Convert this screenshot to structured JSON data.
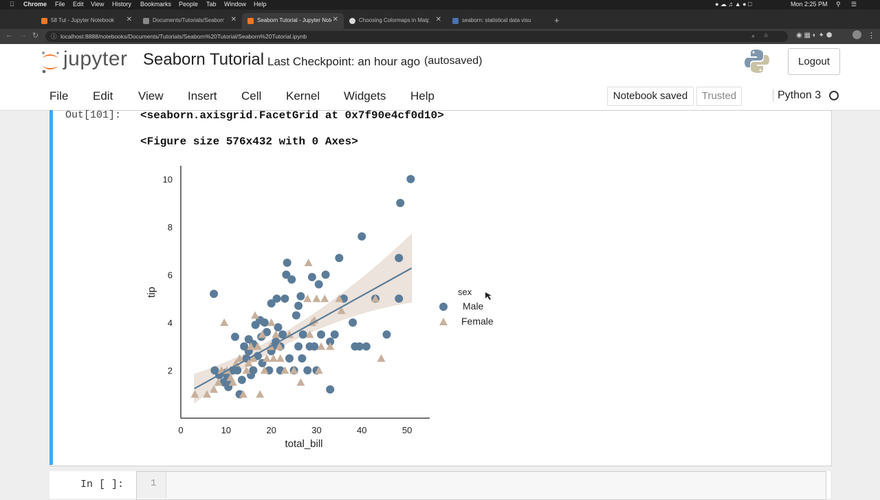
{
  "os_menubar": {
    "app": "Chrome",
    "items": [
      "File",
      "Edit",
      "View",
      "History",
      "Bookmarks",
      "People",
      "Tab",
      "Window",
      "Help"
    ],
    "clock": "Mon 2:25 PM"
  },
  "browser": {
    "tabs": [
      {
        "title": "58 Tut - Jupyter Notebook",
        "active": false
      },
      {
        "title": "Documents/Tutorials/Seaborn",
        "active": false
      },
      {
        "title": "Seaborn Tutorial - Jupyter Note",
        "active": true
      },
      {
        "title": "Choosing Colormaps in Matp",
        "active": false
      },
      {
        "title": "seaborn: statistical data visu",
        "active": false
      }
    ],
    "url": "localhost:8888/notebooks/Documents/Tutorials/Seaborn%20Tutorial/Seaborn%20Tutorial.ipynb"
  },
  "jupyter": {
    "logo_text": "jupyter",
    "notebook_title": "Seaborn Tutorial",
    "checkpoint": "Last Checkpoint: an hour ago",
    "autosave": "(autosaved)",
    "logout_label": "Logout",
    "menu": [
      "File",
      "Edit",
      "View",
      "Insert",
      "Cell",
      "Kernel",
      "Widgets",
      "Help"
    ],
    "status_saved": "Notebook saved",
    "trusted_label": "Trusted",
    "kernel": "Python 3"
  },
  "output_cell": {
    "prompt": "Out[101]:",
    "lines": [
      "<seaborn.axisgrid.FacetGrid at 0x7f90e4cf0d10>",
      "<Figure size 576x432 with 0 Axes>"
    ]
  },
  "input_cell": {
    "prompt": "In [ ]:",
    "line_number": "1"
  },
  "colors": {
    "male": "#4c72b0",
    "female": "#dd8452",
    "cell_selected_bar": "#42a5f5"
  },
  "chart_data": {
    "type": "scatter",
    "xlabel": "total_bill",
    "ylabel": "tip",
    "xlim": [
      0,
      55
    ],
    "ylim": [
      0,
      10.5
    ],
    "xticks": [
      0,
      10,
      20,
      30,
      40,
      50
    ],
    "yticks": [
      2,
      4,
      6,
      8,
      10
    ],
    "legend_title": "sex",
    "legend_position": "right",
    "series": [
      {
        "name": "Male",
        "marker": "circle",
        "color": "#5b7c99",
        "points": [
          [
            7.3,
            5.2
          ],
          [
            7.5,
            2.0
          ],
          [
            8.5,
            1.8
          ],
          [
            9.5,
            1.5
          ],
          [
            10,
            1.9
          ],
          [
            10.3,
            1.7
          ],
          [
            10.5,
            1.3
          ],
          [
            11,
            1.5
          ],
          [
            11.5,
            2.0
          ],
          [
            12,
            3.4
          ],
          [
            12.5,
            2.0
          ],
          [
            13,
            1.0
          ],
          [
            13.5,
            1.6
          ],
          [
            14,
            3.0
          ],
          [
            14.5,
            2.5
          ],
          [
            15,
            3.3
          ],
          [
            15.5,
            1.8
          ],
          [
            16,
            2.0
          ],
          [
            16.5,
            3.9
          ],
          [
            17,
            2.6
          ],
          [
            17.5,
            4.1
          ],
          [
            18,
            2.3
          ],
          [
            18.5,
            4.0
          ],
          [
            19,
            3.6
          ],
          [
            19.5,
            2.0
          ],
          [
            20,
            2.8
          ],
          [
            20.5,
            3.0
          ],
          [
            21,
            3.2
          ],
          [
            21.5,
            3.8
          ],
          [
            22,
            2.0
          ],
          [
            22.5,
            3.5
          ],
          [
            23,
            5.0
          ],
          [
            23.3,
            6.0
          ],
          [
            23.5,
            6.5
          ],
          [
            24,
            2.5
          ],
          [
            24.5,
            5.8
          ],
          [
            25,
            2.0
          ],
          [
            25.5,
            4.3
          ],
          [
            26,
            4.7
          ],
          [
            26.5,
            5.1
          ],
          [
            27,
            3.5
          ],
          [
            28,
            2.0
          ],
          [
            28.5,
            3.0
          ],
          [
            29,
            5.9
          ],
          [
            29.5,
            3.0
          ],
          [
            30,
            2.0
          ],
          [
            30.5,
            5.6
          ],
          [
            31,
            3.5
          ],
          [
            32,
            6.0
          ],
          [
            33,
            1.2
          ],
          [
            33,
            3.2
          ],
          [
            34,
            3.5
          ],
          [
            35,
            6.7
          ],
          [
            36,
            5.0
          ],
          [
            38,
            4.0
          ],
          [
            38.5,
            3.0
          ],
          [
            39.5,
            3.0
          ],
          [
            40,
            7.6
          ],
          [
            41,
            3.0
          ],
          [
            43,
            5.0
          ],
          [
            45.5,
            3.5
          ],
          [
            48.2,
            5.0
          ],
          [
            48.2,
            6.7
          ],
          [
            48.5,
            9.0
          ],
          [
            50.8,
            10.0
          ],
          [
            15,
            2.8
          ],
          [
            16,
            3.1
          ],
          [
            17.8,
            3.4
          ],
          [
            20,
            4.8
          ],
          [
            21.2,
            5.0
          ],
          [
            22,
            3.0
          ],
          [
            26,
            3.0
          ],
          [
            26.8,
            2.5
          ]
        ]
      },
      {
        "name": "Female",
        "marker": "triangle",
        "color": "#c8b09b",
        "points": [
          [
            3.1,
            1.0
          ],
          [
            5.8,
            1.0
          ],
          [
            7.3,
            1.2
          ],
          [
            8.3,
            1.5
          ],
          [
            9,
            2.0
          ],
          [
            9.6,
            4.0
          ],
          [
            10.2,
            2.0
          ],
          [
            11,
            1.7
          ],
          [
            11.5,
            1.5
          ],
          [
            12.2,
            2.3
          ],
          [
            13,
            2.5
          ],
          [
            13.8,
            1.0
          ],
          [
            14.5,
            2.0
          ],
          [
            15,
            2.3
          ],
          [
            15.5,
            3.0
          ],
          [
            16,
            2.5
          ],
          [
            16.4,
            4.3
          ],
          [
            17,
            3.0
          ],
          [
            17.5,
            1.0
          ],
          [
            18,
            3.5
          ],
          [
            18.5,
            2.0
          ],
          [
            19,
            2.5
          ],
          [
            19.8,
            3.0
          ],
          [
            20,
            4.0
          ],
          [
            20.5,
            2.5
          ],
          [
            21,
            3.5
          ],
          [
            21.8,
            3.0
          ],
          [
            22,
            2.5
          ],
          [
            23,
            2.0
          ],
          [
            24,
            3.5
          ],
          [
            25,
            2.0
          ],
          [
            26.5,
            1.5
          ],
          [
            28,
            5.0
          ],
          [
            28.5,
            3.5
          ],
          [
            29,
            4.0
          ],
          [
            30,
            5.0
          ],
          [
            30.5,
            2.0
          ],
          [
            31,
            3.0
          ],
          [
            31.8,
            5.0
          ],
          [
            33,
            3.0
          ],
          [
            35,
            5.0
          ],
          [
            35.5,
            4.5
          ],
          [
            28.2,
            6.5
          ],
          [
            43,
            5.0
          ],
          [
            44.3,
            2.5
          ],
          [
            29.5,
            4.1
          ]
        ]
      }
    ],
    "regression": {
      "slope": 0.105,
      "intercept": 0.92,
      "x_range": [
        3,
        51
      ],
      "color": "#5b7c99",
      "ci_color": "#c8b09b"
    }
  }
}
